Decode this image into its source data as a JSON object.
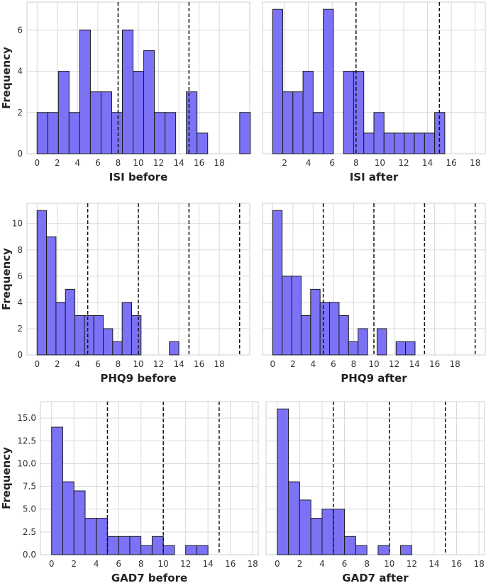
{
  "chart_data": [
    {
      "type": "bar",
      "xlabel": "ISI before",
      "ylabel": "Frequency",
      "xlim": [
        -1,
        21
      ],
      "ylim": [
        0,
        7.35
      ],
      "xticks": [
        0,
        2,
        4,
        6,
        8,
        10,
        12,
        14,
        16,
        18
      ],
      "yticks": [
        0,
        2,
        4,
        6
      ],
      "ytick_labels": [
        "0",
        "2",
        "4",
        "6"
      ],
      "bin_start": 0,
      "bin_width": 1.053,
      "values": [
        2,
        2,
        4,
        2,
        6,
        3,
        3,
        2,
        6,
        4,
        5,
        2,
        2,
        0,
        3,
        1,
        0,
        0,
        0,
        2
      ],
      "vlines": [
        8,
        15
      ]
    },
    {
      "type": "bar",
      "xlabel": "ISI after",
      "ylabel": "",
      "xlim": [
        0.15,
        18.85
      ],
      "ylim": [
        0,
        7.35
      ],
      "xticks": [
        2,
        4,
        6,
        8,
        10,
        12,
        14,
        16,
        18
      ],
      "yticks": [
        0,
        2,
        4,
        6
      ],
      "ytick_labels": [],
      "bin_start": 1,
      "bin_width": 0.85,
      "values": [
        7,
        3,
        3,
        4,
        2,
        7,
        0,
        4,
        4,
        1,
        2,
        1,
        1,
        1,
        1,
        1,
        2
      ],
      "vlines": [
        8,
        15
      ]
    },
    {
      "type": "bar",
      "xlabel": "PHQ9 before",
      "ylabel": "Frequency",
      "xlim": [
        -1,
        21
      ],
      "ylim": [
        0,
        11.55
      ],
      "xticks": [
        0,
        2,
        4,
        6,
        8,
        10,
        12,
        14,
        16,
        18
      ],
      "yticks": [
        0,
        2,
        4,
        6,
        8,
        10
      ],
      "ytick_labels": [
        "0",
        "2",
        "4",
        "6",
        "8",
        "10"
      ],
      "bin_start": 0,
      "bin_width": 0.9333,
      "values": [
        11,
        9,
        4,
        5,
        3,
        3,
        3,
        2,
        1,
        4,
        3,
        0,
        0,
        0,
        1
      ],
      "vlines": [
        5,
        10,
        15,
        20
      ]
    },
    {
      "type": "bar",
      "xlabel": "PHQ9 after",
      "ylabel": "",
      "xlim": [
        -1,
        21
      ],
      "ylim": [
        0,
        11.55
      ],
      "xticks": [
        0,
        2,
        4,
        6,
        8,
        10,
        12,
        14,
        16,
        18
      ],
      "yticks": [
        0,
        2,
        4,
        6,
        8,
        10
      ],
      "ytick_labels": [],
      "bin_start": 0,
      "bin_width": 0.9375,
      "values": [
        11,
        6,
        6,
        3,
        5,
        4,
        4,
        3,
        1,
        2,
        0,
        2,
        0,
        1,
        1
      ],
      "vlines": [
        5,
        10,
        15,
        20
      ]
    },
    {
      "type": "bar",
      "xlabel": "GAD7 before",
      "ylabel": "Frequency",
      "xlim": [
        -1,
        18.5
      ],
      "ylim": [
        0,
        16.8
      ],
      "xticks": [
        0,
        2,
        4,
        6,
        8,
        10,
        12,
        14,
        16,
        18
      ],
      "yticks": [
        0,
        2.5,
        5,
        7.5,
        10,
        12.5,
        15
      ],
      "ytick_labels": [
        "0.0",
        "2.5",
        "5.0",
        "7.5",
        "10.0",
        "12.5",
        "15.0"
      ],
      "bin_start": 0,
      "bin_width": 1,
      "values": [
        14,
        8,
        7,
        4,
        4,
        2,
        2,
        2,
        1,
        2,
        1,
        0,
        1,
        1
      ],
      "vlines": [
        5,
        10,
        15
      ]
    },
    {
      "type": "bar",
      "xlabel": "GAD7 after",
      "ylabel": "",
      "xlim": [
        -1,
        18.5
      ],
      "ylim": [
        0,
        16.8
      ],
      "xticks": [
        0,
        2,
        4,
        6,
        8,
        10,
        12,
        14,
        16,
        18
      ],
      "yticks": [
        0,
        2.5,
        5,
        7.5,
        10,
        12.5,
        15
      ],
      "ytick_labels": [],
      "bin_start": 0,
      "bin_width": 1,
      "values": [
        16,
        8,
        6,
        4,
        5,
        5,
        2,
        1,
        0,
        1,
        0,
        1
      ],
      "vlines": [
        5,
        10,
        15
      ]
    }
  ],
  "colors": {
    "bar_fill": "#7b72f5",
    "bar_edge": "#1a1a1a",
    "grid": "#d9d9d9",
    "reference_line": "#111111"
  }
}
